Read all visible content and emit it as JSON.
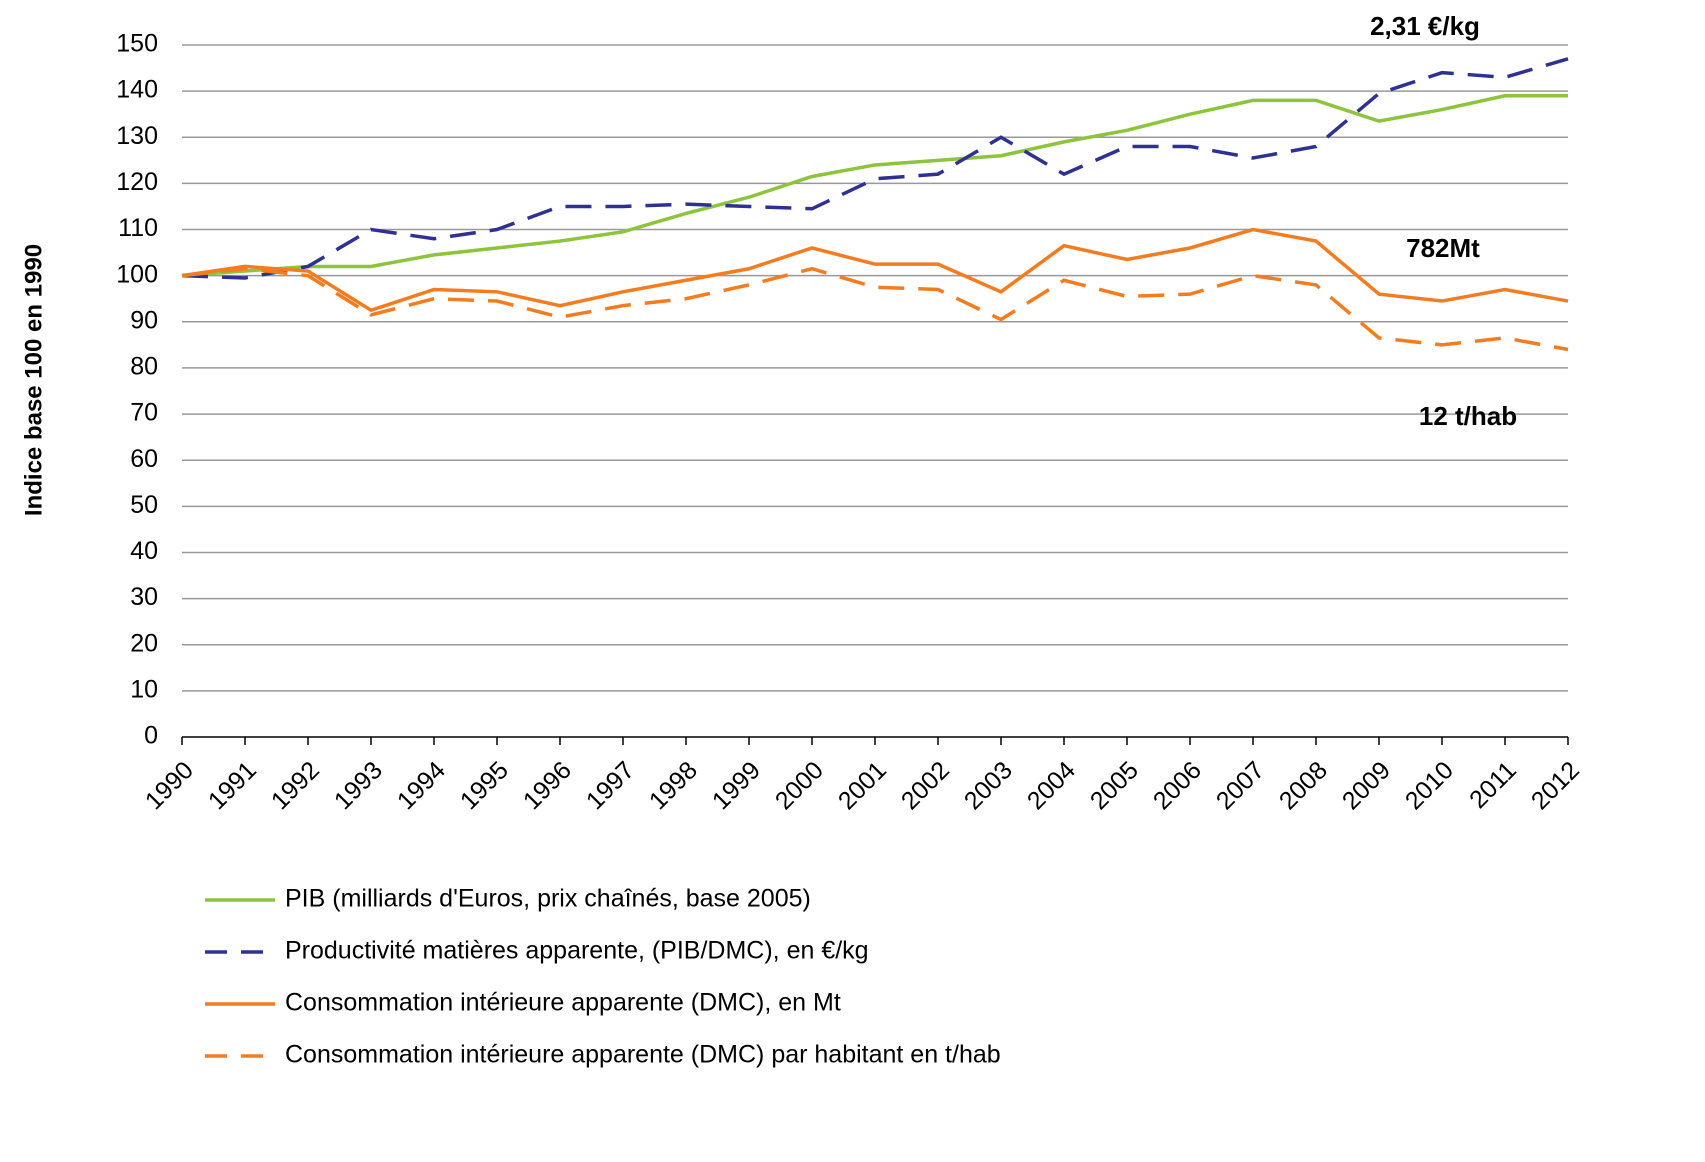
{
  "chart_data": {
    "type": "line",
    "y_label": "Indice base 100 en 1990",
    "categories": [
      "1990",
      "1991",
      "1992",
      "1993",
      "1994",
      "1995",
      "1996",
      "1997",
      "1998",
      "1999",
      "2000",
      "2001",
      "2002",
      "2003",
      "2004",
      "2005",
      "2006",
      "2007",
      "2008",
      "2009",
      "2010",
      "2011",
      "2012"
    ],
    "series": [
      {
        "name": "PIB (milliards d'Euros, prix chaînés, base 2005)",
        "color": "#8cc43c",
        "dashed": false,
        "values": [
          100,
          101,
          102,
          102,
          104.5,
          106,
          107.5,
          109.5,
          113.5,
          117,
          121.5,
          124,
          125,
          126,
          129,
          131.5,
          135,
          138,
          138,
          133.5,
          136,
          139,
          139
        ]
      },
      {
        "name": "Productivité matières apparente, (PIB/DMC), en €/kg",
        "color": "#2e3192",
        "dashed": true,
        "values": [
          100,
          99.5,
          102,
          110,
          108,
          110,
          115,
          115,
          115.5,
          115,
          114.5,
          121,
          122,
          130,
          122,
          128,
          128,
          125.5,
          128,
          139.5,
          144,
          143,
          147
        ]
      },
      {
        "name": "Consommation intérieure apparente  (DMC), en Mt",
        "color": "#f47c20",
        "dashed": false,
        "values": [
          100,
          102,
          101,
          92.5,
          97,
          96.5,
          93.5,
          96.5,
          99,
          101.5,
          106,
          102.5,
          102.5,
          96.5,
          106.5,
          103.5,
          106,
          110,
          107.5,
          96,
          94.5,
          97,
          94.5
        ]
      },
      {
        "name": "Consommation intérieure apparente (DMC) par habitant en t/hab",
        "color": "#f47c20",
        "dashed": true,
        "values": [
          100,
          101.5,
          100,
          91.5,
          95,
          94.5,
          91,
          93.5,
          95,
          98,
          101.5,
          97.5,
          97,
          90.5,
          99,
          95.5,
          96,
          100,
          98,
          86.5,
          85,
          86.5,
          84
        ]
      }
    ],
    "annotations": [
      {
        "text": "2,31 €/kg",
        "color": "#2e3192"
      },
      {
        "text": "782Mt",
        "color": "#f47c20"
      },
      {
        "text": "12 t/hab",
        "color": "#f47c20"
      }
    ],
    "ylim": [
      0,
      150
    ],
    "yticks": [
      0,
      10,
      20,
      30,
      40,
      50,
      60,
      70,
      80,
      90,
      100,
      110,
      120,
      130,
      140,
      150
    ],
    "grid": true
  }
}
